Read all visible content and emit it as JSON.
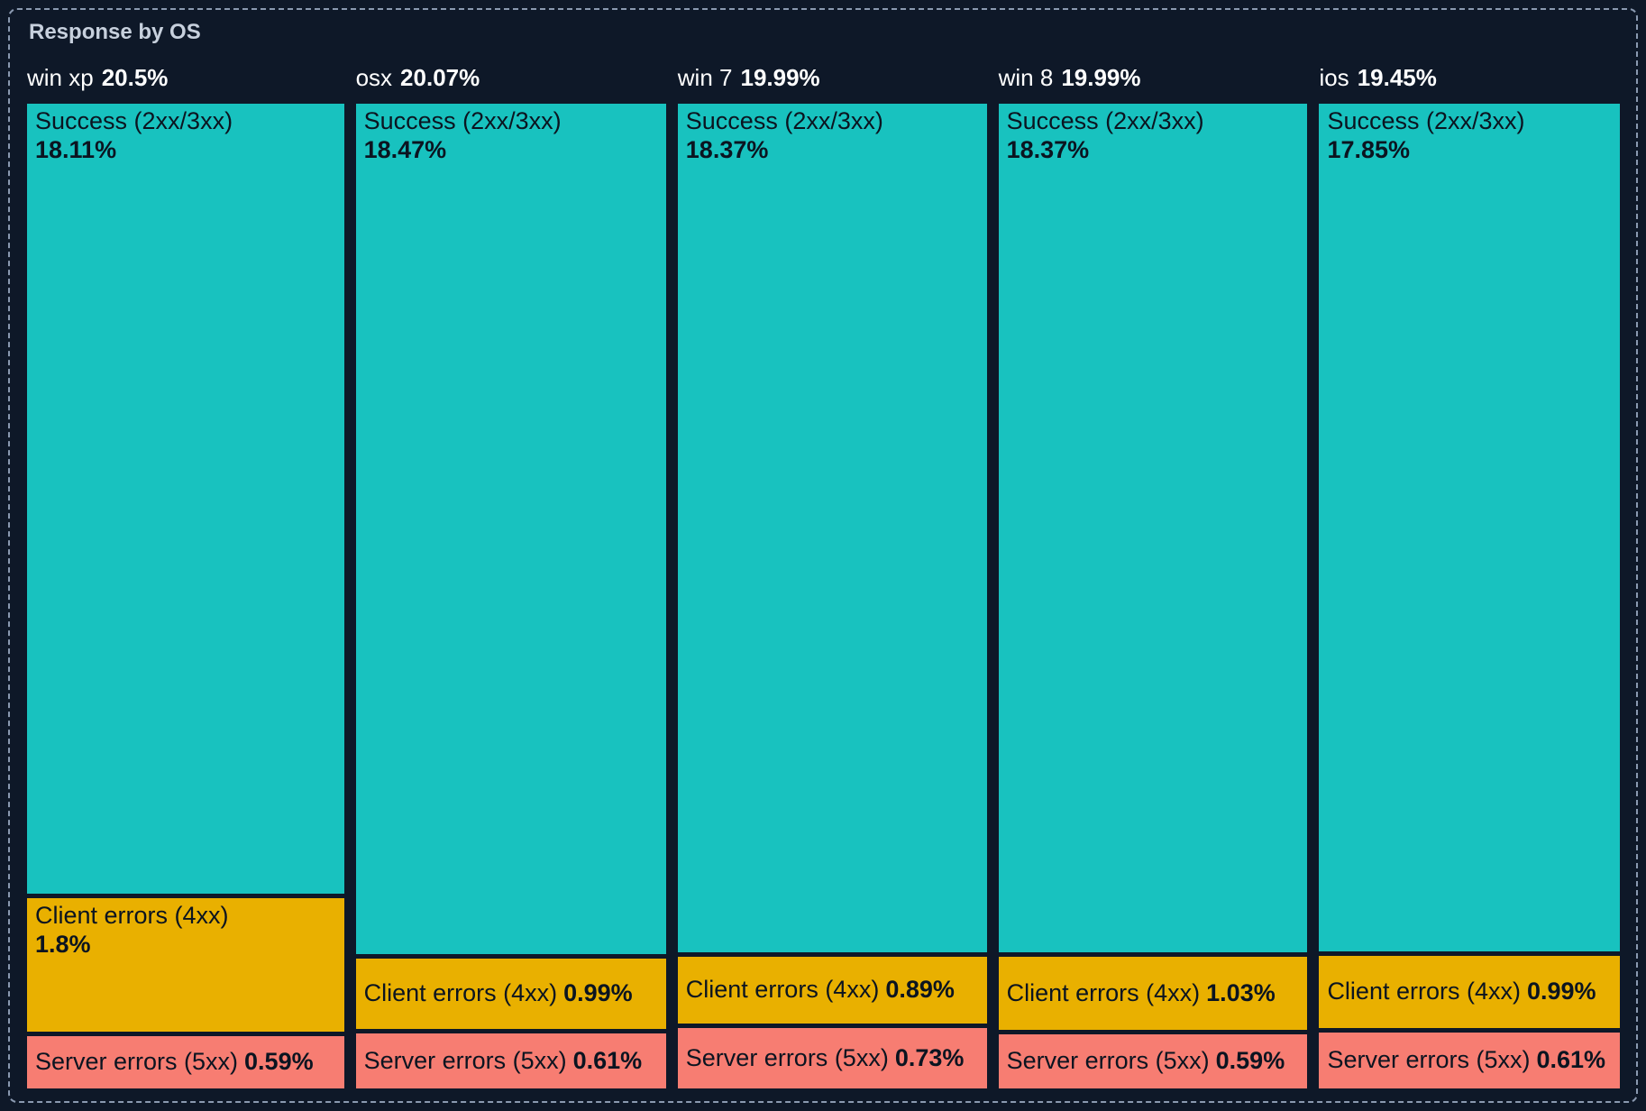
{
  "panel": {
    "title": "Response by OS"
  },
  "chart_data": {
    "type": "bar",
    "variant": "mosaic / icicle treemap (columns sized by OS share, segments stacked by response class, all values are percent of total)",
    "stacked": true,
    "title": "Response by OS",
    "legend_position": "none (labels drawn inside segments)",
    "grid": false,
    "categories": [
      "win xp",
      "osx",
      "win 7",
      "win 8",
      "ios"
    ],
    "category_totals": [
      20.5,
      20.07,
      19.99,
      19.99,
      19.45
    ],
    "series": [
      {
        "name": "Success (2xx/3xx)",
        "color": "#18c2bf",
        "values": [
          18.11,
          18.47,
          18.37,
          18.37,
          17.85
        ]
      },
      {
        "name": "Client errors (4xx)",
        "color": "#e9b000",
        "values": [
          1.8,
          0.99,
          0.89,
          1.03,
          0.99
        ]
      },
      {
        "name": "Server errors (5xx)",
        "color": "#f77d72",
        "values": [
          0.59,
          0.61,
          0.73,
          0.59,
          0.61
        ]
      }
    ],
    "colors": [
      "#18c2bf",
      "#e9b000",
      "#f77d72"
    ],
    "columns": [
      {
        "os": "win xp",
        "total_pct": 20.5,
        "total_display": "20.5%",
        "segments": [
          {
            "label": "Success (2xx/3xx)",
            "pct": 18.11,
            "display": "18.11%"
          },
          {
            "label": "Client errors (4xx)",
            "pct": 1.8,
            "display": "1.8%"
          },
          {
            "label": "Server errors (5xx)",
            "pct": 0.59,
            "display": "0.59%"
          }
        ]
      },
      {
        "os": "osx",
        "total_pct": 20.07,
        "total_display": "20.07%",
        "segments": [
          {
            "label": "Success (2xx/3xx)",
            "pct": 18.47,
            "display": "18.47%"
          },
          {
            "label": "Client errors (4xx)",
            "pct": 0.99,
            "display": "0.99%"
          },
          {
            "label": "Server errors (5xx)",
            "pct": 0.61,
            "display": "0.61%"
          }
        ]
      },
      {
        "os": "win 7",
        "total_pct": 19.99,
        "total_display": "19.99%",
        "segments": [
          {
            "label": "Success (2xx/3xx)",
            "pct": 18.37,
            "display": "18.37%"
          },
          {
            "label": "Client errors (4xx)",
            "pct": 0.89,
            "display": "0.89%"
          },
          {
            "label": "Server errors (5xx)",
            "pct": 0.73,
            "display": "0.73%"
          }
        ]
      },
      {
        "os": "win 8",
        "total_pct": 19.99,
        "total_display": "19.99%",
        "segments": [
          {
            "label": "Success (2xx/3xx)",
            "pct": 18.37,
            "display": "18.37%"
          },
          {
            "label": "Client errors (4xx)",
            "pct": 1.03,
            "display": "1.03%"
          },
          {
            "label": "Server errors (5xx)",
            "pct": 0.59,
            "display": "0.59%"
          }
        ]
      },
      {
        "os": "ios",
        "total_pct": 19.45,
        "total_display": "19.45%",
        "segments": [
          {
            "label": "Success (2xx/3xx)",
            "pct": 17.85,
            "display": "17.85%"
          },
          {
            "label": "Client errors (4xx)",
            "pct": 0.99,
            "display": "0.99%"
          },
          {
            "label": "Server errors (5xx)",
            "pct": 0.61,
            "display": "0.61%"
          }
        ]
      }
    ],
    "theme_colors": {
      "background": "#0e1828",
      "panel_border": "#8a99b0",
      "title_text": "#c7d0dd",
      "header_text": "#ffffff",
      "segment_text": "#0b1420"
    }
  }
}
